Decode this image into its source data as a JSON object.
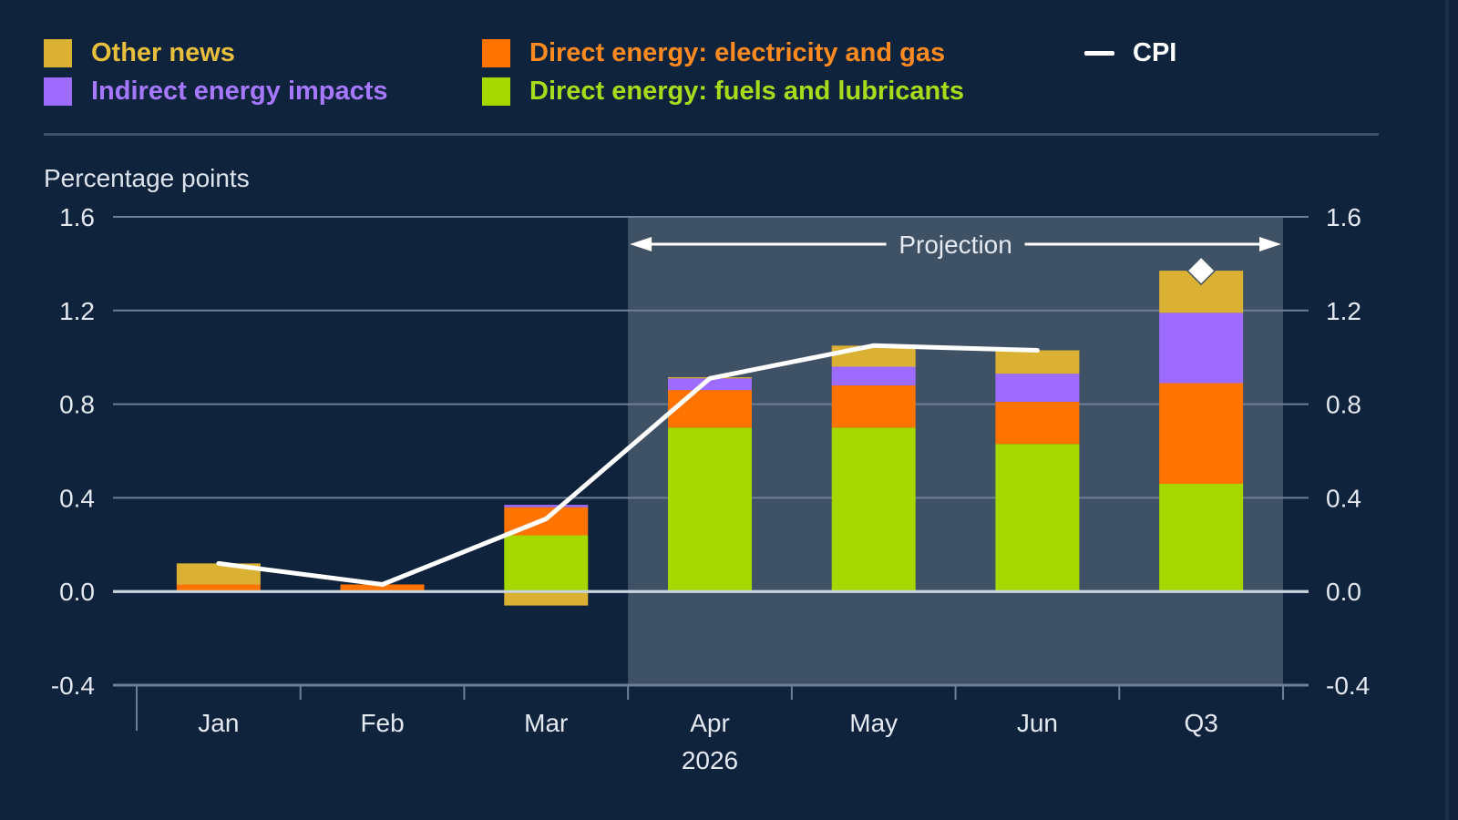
{
  "chart_data": {
    "type": "bar",
    "stacked": true,
    "title": "",
    "ylabel": "Percentage points",
    "xlabel": "2026",
    "ylim": [
      -0.4,
      1.6
    ],
    "yticks": [
      "1.6",
      "1.2",
      "0.8",
      "0.4",
      "0.0",
      "-0.4"
    ],
    "ytick_values": [
      1.6,
      1.2,
      0.8,
      0.4,
      0.0,
      -0.4
    ],
    "grid": true,
    "categories": [
      "Jan",
      "Feb",
      "Mar",
      "Apr",
      "May",
      "Jun",
      "Q3"
    ],
    "year_label": "2026",
    "year_label_under": "Apr",
    "projection": {
      "label": "Projection",
      "from_category": "Apr",
      "to_category": "Q3"
    },
    "series": [
      {
        "name": "Direct energy: fuels and lubricants",
        "color": "#a6d800",
        "values": [
          0.0,
          0.0,
          0.24,
          0.7,
          0.7,
          0.63,
          0.46
        ]
      },
      {
        "name": "Direct energy: electricity and gas",
        "color": "#ff7300",
        "values": [
          0.03,
          0.03,
          0.12,
          0.16,
          0.18,
          0.18,
          0.43
        ]
      },
      {
        "name": "Indirect energy impacts",
        "color": "#9d6cff",
        "values": [
          0.0,
          0.0,
          0.01,
          0.05,
          0.08,
          0.12,
          0.3
        ]
      },
      {
        "name": "Other news",
        "color": "#dbb133",
        "values": [
          0.09,
          0.0,
          -0.06,
          0.005,
          0.09,
          0.1,
          0.18
        ]
      }
    ],
    "line": {
      "name": "CPI",
      "color": "#ffffff",
      "values": [
        0.12,
        0.03,
        0.31,
        0.91,
        1.05,
        1.03,
        null
      ]
    },
    "marker": {
      "name": "CPI",
      "category": "Q3",
      "value": 1.37,
      "shape": "diamond",
      "color": "#ffffff"
    },
    "legend_placement": "top"
  },
  "legend": {
    "items": [
      {
        "label": "Other news",
        "color": "#dbb133",
        "text_color": "#e8bf3c",
        "kind": "swatch"
      },
      {
        "label": "Indirect energy impacts",
        "color": "#9d6cff",
        "text_color": "#a678ff",
        "kind": "swatch"
      },
      {
        "label": "Direct energy: electricity and gas",
        "color": "#ff7300",
        "text_color": "#ff8a1f",
        "kind": "swatch"
      },
      {
        "label": "Direct energy: fuels and lubricants",
        "color": "#a6d800",
        "text_color": "#a8dc1a",
        "kind": "swatch"
      },
      {
        "label": "CPI",
        "color": "#ffffff",
        "text_color": "#ffffff",
        "kind": "line"
      }
    ]
  },
  "colors": {
    "background": "#10233c",
    "projection_shade": "#3f5165",
    "gridline": "#6e7f96",
    "zero_line": "#c9d3e0",
    "text": "#e4e9f1"
  }
}
